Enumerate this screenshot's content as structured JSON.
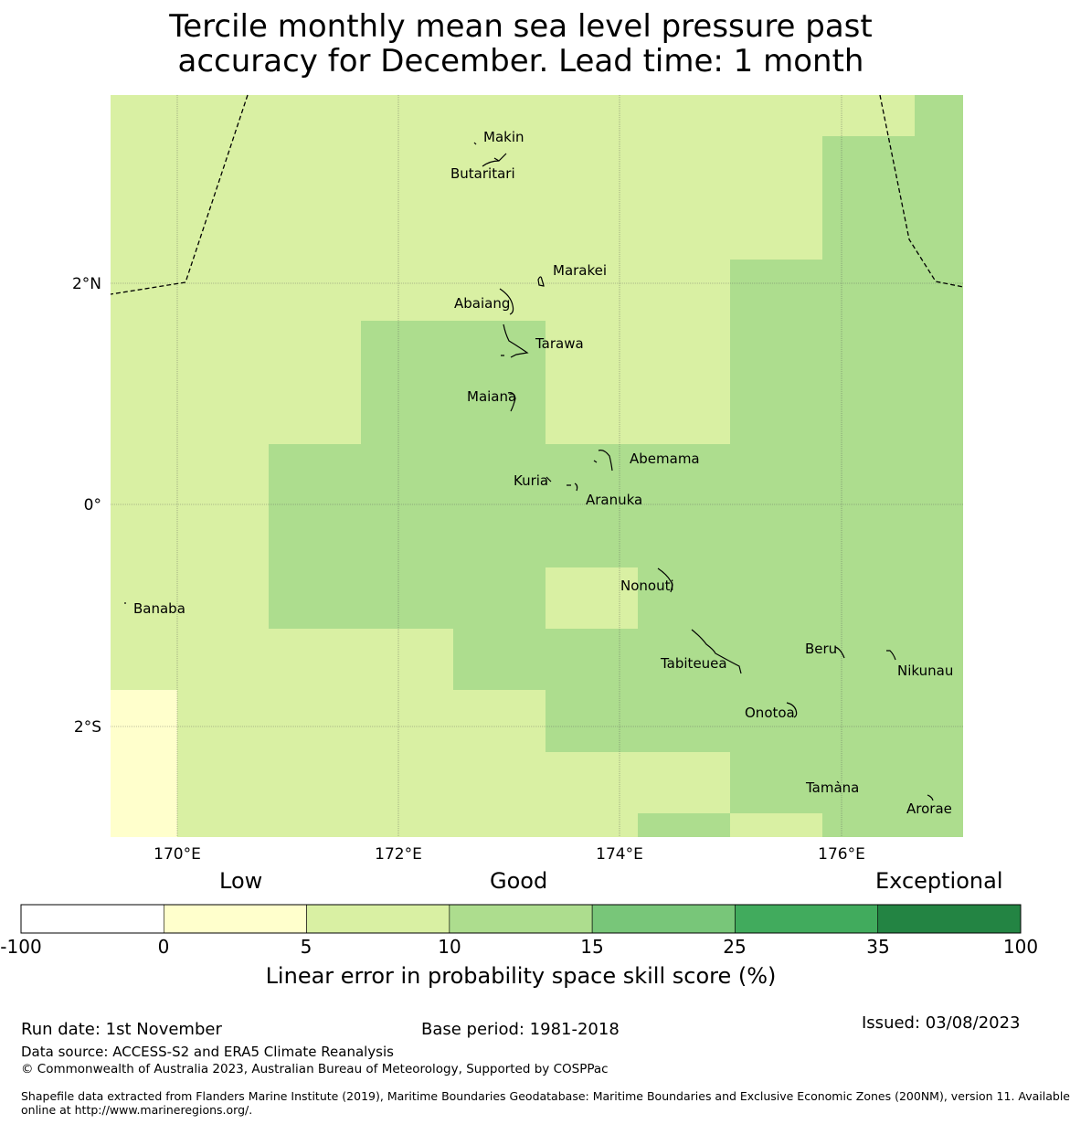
{
  "title_line1": "Tercile monthly mean sea level pressure past",
  "title_line2": "accuracy for December. Lead time: 1 month",
  "axes": {
    "lon_ticks": [
      "170°E",
      "172°E",
      "174°E",
      "176°E"
    ],
    "lat_ticks": [
      "2°N",
      "0°",
      "2°S"
    ]
  },
  "islands": [
    "Makin",
    "Butaritari",
    "Marakei",
    "Abaiang",
    "Tarawa",
    "Maiana",
    "Abemama",
    "Kuria",
    "Aranuka",
    "Nonouti",
    "Banaba",
    "Beru",
    "Tabiteuea",
    "Nikunau",
    "Onotoa",
    "Tamana",
    "Arorae"
  ],
  "colorbar": {
    "categories": [
      "Low",
      "Good",
      "Exceptional"
    ],
    "ticks": [
      "-100",
      "0",
      "5",
      "10",
      "15",
      "25",
      "35",
      "100"
    ],
    "colors": [
      "#ffffff",
      "#ffffcc",
      "#d9f0a3",
      "#addd8e",
      "#78c679",
      "#41ab5d",
      "#238443"
    ],
    "label": "Linear error in probability space skill score (%)"
  },
  "footer": {
    "run_date": "Run date: 1st November",
    "base_period": "Base period: 1981-2018",
    "issued": "Issued: 03/08/2023",
    "data_source": "Data source: ACCESS-S2 and ERA5 Climate Reanalysis",
    "copyright": "© Commonwealth of Australia 2023, Australian Bureau of Meteorology, Supported by COSPPac",
    "shapefile_line1": "Shapefile data extracted from Flanders Marine Institute (2019), Maritime Boundaries Geodatabase: Maritime Boundaries and Exclusive Economic Zones (200NM), version 11. Available",
    "shapefile_line2": "online at http://www.marineregions.org/."
  }
}
